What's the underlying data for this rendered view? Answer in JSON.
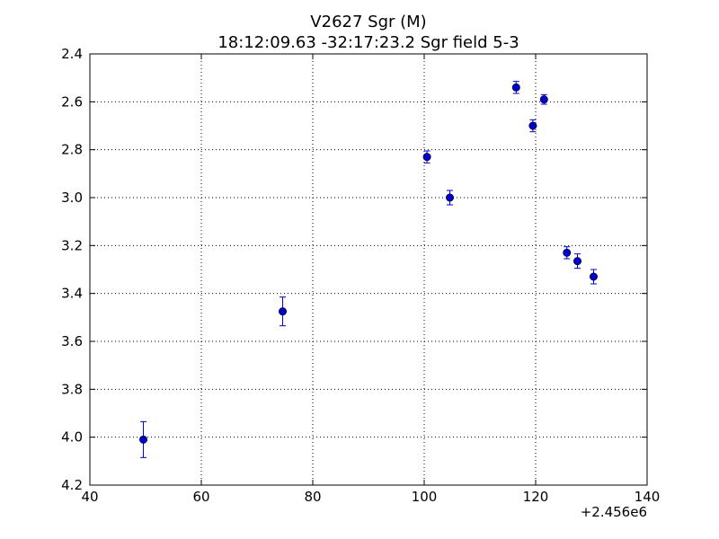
{
  "chart_data": {
    "type": "scatter",
    "title": "V2627 Sgr  (M)",
    "subtitle": "18:12:09.63 -32:17:23.2 Sgr field 5-3",
    "xlabel": "",
    "ylabel": "",
    "x_offset_label": "+2.456e6",
    "xlim": [
      40,
      140
    ],
    "ylim": [
      2.4,
      4.2
    ],
    "y_inverted": true,
    "grid": true,
    "x_ticks": [
      "40",
      "60",
      "80",
      "100",
      "120",
      "140"
    ],
    "y_ticks": [
      "2.4",
      "2.6",
      "2.8",
      "3.0",
      "3.2",
      "3.4",
      "3.6",
      "3.8",
      "4.0",
      "4.2"
    ],
    "marker_color": "#0000cc",
    "errorbar_color": "#0000cc",
    "points": [
      {
        "x": 49.6,
        "y": 4.01,
        "err": 0.075
      },
      {
        "x": 74.6,
        "y": 3.475,
        "err": 0.06
      },
      {
        "x": 100.5,
        "y": 2.83,
        "err": 0.025
      },
      {
        "x": 104.6,
        "y": 3.0,
        "err": 0.03
      },
      {
        "x": 116.5,
        "y": 2.54,
        "err": 0.025
      },
      {
        "x": 119.5,
        "y": 2.7,
        "err": 0.025
      },
      {
        "x": 121.5,
        "y": 2.59,
        "err": 0.02
      },
      {
        "x": 125.6,
        "y": 3.23,
        "err": 0.025
      },
      {
        "x": 127.5,
        "y": 3.265,
        "err": 0.03
      },
      {
        "x": 130.4,
        "y": 3.33,
        "err": 0.03
      }
    ]
  }
}
